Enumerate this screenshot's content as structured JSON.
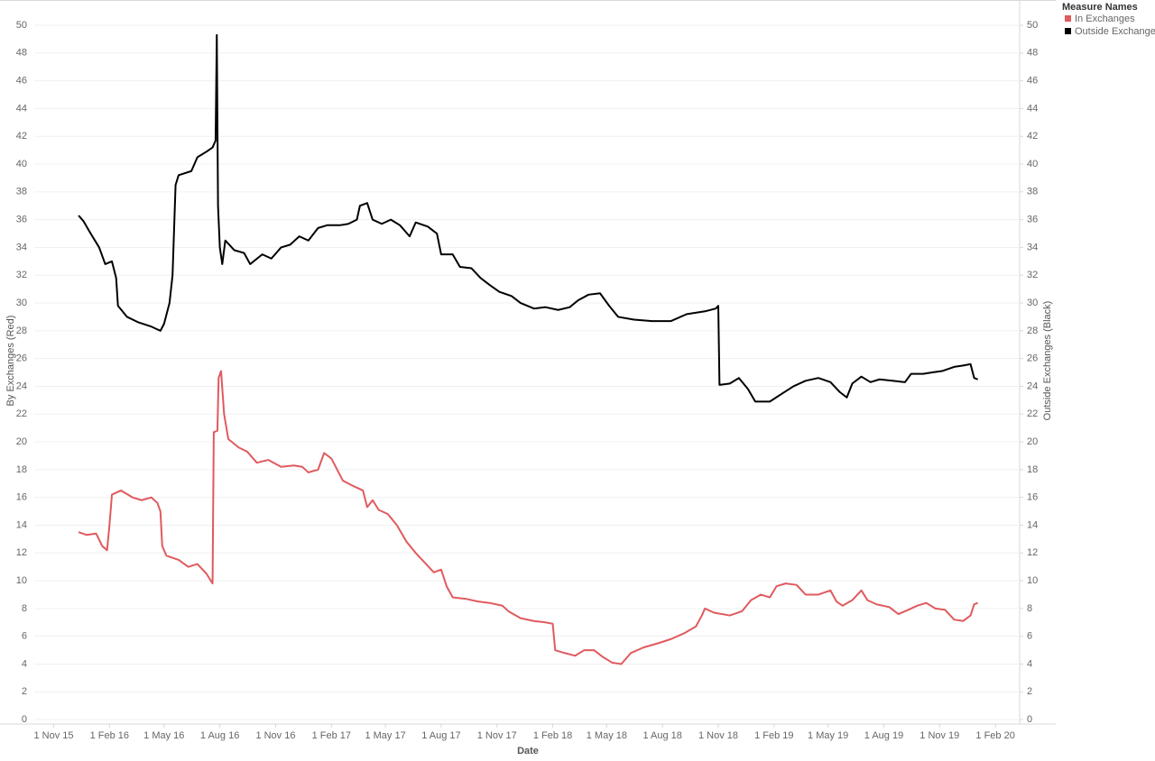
{
  "chart_data": {
    "type": "line",
    "x_label": "Date",
    "y_label": "By Exchanges (Red)",
    "y2_label": "Outside Exchanges (Black)",
    "legend_title": "Measure Names",
    "legend": "top-right",
    "grid": true,
    "xlim": [
      "2015-09-30",
      "2020-03-12"
    ],
    "xticks": [
      {
        "value": "2015-11-01",
        "label": "1 Nov 15"
      },
      {
        "value": "2016-02-01",
        "label": "1 Feb 16"
      },
      {
        "value": "2016-05-01",
        "label": "1 May 16"
      },
      {
        "value": "2016-08-01",
        "label": "1 Aug 16"
      },
      {
        "value": "2016-11-01",
        "label": "1 Nov 16"
      },
      {
        "value": "2017-02-01",
        "label": "1 Feb 17"
      },
      {
        "value": "2017-05-01",
        "label": "1 May 17"
      },
      {
        "value": "2017-08-01",
        "label": "1 Aug 17"
      },
      {
        "value": "2017-11-01",
        "label": "1 Nov 17"
      },
      {
        "value": "2018-02-01",
        "label": "1 Feb 18"
      },
      {
        "value": "2018-05-01",
        "label": "1 May 18"
      },
      {
        "value": "2018-08-01",
        "label": "1 Aug 18"
      },
      {
        "value": "2018-11-01",
        "label": "1 Nov 18"
      },
      {
        "value": "2019-02-01",
        "label": "1 Feb 19"
      },
      {
        "value": "2019-05-01",
        "label": "1 May 19"
      },
      {
        "value": "2019-08-01",
        "label": "1 Aug 19"
      },
      {
        "value": "2019-11-01",
        "label": "1 Nov 19"
      },
      {
        "value": "2020-02-01",
        "label": "1 Feb 20"
      }
    ],
    "ylim": [
      -0.32,
      51.82
    ],
    "yticks": [
      0,
      2,
      4,
      6,
      8,
      10,
      12,
      14,
      16,
      18,
      20,
      22,
      24,
      26,
      28,
      30,
      32,
      34,
      36,
      38,
      40,
      42,
      44,
      46,
      48,
      50
    ],
    "y2lim": [
      -0.32,
      51.82
    ],
    "y2ticks": [
      0,
      2,
      4,
      6,
      8,
      10,
      12,
      14,
      16,
      18,
      20,
      22,
      24,
      26,
      28,
      30,
      32,
      34,
      36,
      38,
      40,
      42,
      44,
      46,
      48,
      50
    ],
    "series": [
      {
        "name": "In Exchanges",
        "color": "#e05a5e",
        "x": [
          "2015-12-12",
          "2015-12-25",
          "2016-01-10",
          "2016-01-20",
          "2016-01-28",
          "2016-02-01",
          "2016-02-05",
          "2016-02-20",
          "2016-03-10",
          "2016-03-25",
          "2016-04-10",
          "2016-04-20",
          "2016-04-25",
          "2016-04-28",
          "2016-05-05",
          "2016-05-25",
          "2016-06-10",
          "2016-06-25",
          "2016-07-10",
          "2016-07-20",
          "2016-07-22",
          "2016-07-28",
          "2016-07-30",
          "2016-08-03",
          "2016-08-08",
          "2016-08-15",
          "2016-09-01",
          "2016-09-15",
          "2016-10-01",
          "2016-10-20",
          "2016-11-10",
          "2016-12-01",
          "2016-12-15",
          "2016-12-25",
          "2017-01-10",
          "2017-01-20",
          "2017-02-01",
          "2017-02-20",
          "2017-03-10",
          "2017-03-25",
          "2017-04-01",
          "2017-04-10",
          "2017-04-20",
          "2017-05-05",
          "2017-05-20",
          "2017-06-05",
          "2017-06-20",
          "2017-07-05",
          "2017-07-20",
          "2017-08-01",
          "2017-08-10",
          "2017-08-20",
          "2017-09-10",
          "2017-10-01",
          "2017-10-20",
          "2017-11-10",
          "2017-11-20",
          "2017-12-10",
          "2018-01-01",
          "2018-01-20",
          "2018-02-01",
          "2018-02-05",
          "2018-02-20",
          "2018-03-10",
          "2018-03-25",
          "2018-04-10",
          "2018-04-25",
          "2018-05-10",
          "2018-05-25",
          "2018-06-10",
          "2018-07-01",
          "2018-07-25",
          "2018-08-15",
          "2018-09-05",
          "2018-09-25",
          "2018-10-05",
          "2018-10-10",
          "2018-10-25",
          "2018-11-20",
          "2018-12-10",
          "2018-12-25",
          "2019-01-10",
          "2019-01-25",
          "2019-02-05",
          "2019-02-20",
          "2019-03-10",
          "2019-03-25",
          "2019-04-15",
          "2019-05-05",
          "2019-05-15",
          "2019-05-25",
          "2019-06-10",
          "2019-06-25",
          "2019-07-05",
          "2019-07-20",
          "2019-08-10",
          "2019-08-25",
          "2019-09-10",
          "2019-09-25",
          "2019-10-10",
          "2019-10-25",
          "2019-11-10",
          "2019-11-25",
          "2019-12-10",
          "2019-12-22",
          "2019-12-28",
          "2020-01-03"
        ],
        "values": [
          13.5,
          13.3,
          13.4,
          12.5,
          12.2,
          14.0,
          16.2,
          16.5,
          16.0,
          15.8,
          16.0,
          15.6,
          15.0,
          12.5,
          11.8,
          11.5,
          11.0,
          11.2,
          10.5,
          9.8,
          20.7,
          20.8,
          24.6,
          25.1,
          22.0,
          20.2,
          19.6,
          19.3,
          18.5,
          18.7,
          18.2,
          18.3,
          18.2,
          17.8,
          18.0,
          19.2,
          18.8,
          17.2,
          16.8,
          16.5,
          15.3,
          15.8,
          15.1,
          14.8,
          14.0,
          12.8,
          12.0,
          11.3,
          10.6,
          10.8,
          9.6,
          8.8,
          8.7,
          8.5,
          8.4,
          8.2,
          7.8,
          7.3,
          7.1,
          7.0,
          6.9,
          5.0,
          4.8,
          4.6,
          5.0,
          5.0,
          4.5,
          4.1,
          4.0,
          4.8,
          5.2,
          5.5,
          5.8,
          6.2,
          6.7,
          7.5,
          8.0,
          7.7,
          7.5,
          7.8,
          8.6,
          9.0,
          8.8,
          9.6,
          9.8,
          9.7,
          9.0,
          9.0,
          9.3,
          8.5,
          8.2,
          8.6,
          9.3,
          8.6,
          8.3,
          8.1,
          7.6,
          7.9,
          8.2,
          8.4,
          8.0,
          7.9,
          7.2,
          7.1,
          7.5,
          8.3,
          8.4
        ]
      },
      {
        "name": "Outside Exchanges",
        "color": "#000000",
        "axis": "y2",
        "x": [
          "2015-12-12",
          "2015-12-20",
          "2016-01-01",
          "2016-01-15",
          "2016-01-25",
          "2016-02-05",
          "2016-02-12",
          "2016-02-15",
          "2016-03-01",
          "2016-03-20",
          "2016-04-10",
          "2016-04-25",
          "2016-05-01",
          "2016-05-10",
          "2016-05-15",
          "2016-05-20",
          "2016-05-25",
          "2016-06-15",
          "2016-06-25",
          "2016-07-10",
          "2016-07-20",
          "2016-07-25",
          "2016-07-27",
          "2016-07-29",
          "2016-08-01",
          "2016-08-05",
          "2016-08-10",
          "2016-08-25",
          "2016-09-10",
          "2016-09-20",
          "2016-10-10",
          "2016-10-25",
          "2016-11-10",
          "2016-11-25",
          "2016-12-10",
          "2016-12-25",
          "2017-01-10",
          "2017-01-25",
          "2017-02-15",
          "2017-03-01",
          "2017-03-15",
          "2017-03-20",
          "2017-04-01",
          "2017-04-10",
          "2017-04-25",
          "2017-05-10",
          "2017-05-25",
          "2017-06-10",
          "2017-06-20",
          "2017-07-10",
          "2017-07-25",
          "2017-08-01",
          "2017-08-20",
          "2017-09-01",
          "2017-09-20",
          "2017-10-05",
          "2017-10-20",
          "2017-11-05",
          "2017-11-25",
          "2017-12-10",
          "2018-01-01",
          "2018-01-20",
          "2018-02-10",
          "2018-03-01",
          "2018-03-15",
          "2018-04-01",
          "2018-04-20",
          "2018-05-05",
          "2018-05-20",
          "2018-06-15",
          "2018-07-15",
          "2018-08-15",
          "2018-09-10",
          "2018-10-10",
          "2018-10-28",
          "2018-11-01",
          "2018-11-03",
          "2018-11-20",
          "2018-12-05",
          "2018-12-20",
          "2019-01-01",
          "2019-01-25",
          "2019-02-15",
          "2019-03-05",
          "2019-03-25",
          "2019-04-15",
          "2019-05-05",
          "2019-05-20",
          "2019-06-01",
          "2019-06-10",
          "2019-06-25",
          "2019-07-10",
          "2019-07-25",
          "2019-08-15",
          "2019-09-05",
          "2019-09-15",
          "2019-10-05",
          "2019-10-20",
          "2019-11-05",
          "2019-11-25",
          "2019-12-10",
          "2019-12-22",
          "2019-12-28",
          "2020-01-03"
        ],
        "values": [
          36.3,
          35.9,
          35.0,
          34.0,
          32.8,
          33.0,
          31.8,
          29.8,
          29.0,
          28.6,
          28.3,
          28.0,
          28.5,
          30.0,
          32.0,
          38.5,
          39.2,
          39.5,
          40.5,
          40.9,
          41.2,
          41.7,
          49.3,
          37.0,
          34.0,
          32.8,
          34.5,
          33.8,
          33.6,
          32.8,
          33.5,
          33.2,
          34.0,
          34.2,
          34.8,
          34.5,
          35.4,
          35.6,
          35.6,
          35.7,
          36.0,
          37.0,
          37.2,
          36.0,
          35.7,
          36.0,
          35.6,
          34.8,
          35.8,
          35.5,
          35.0,
          33.5,
          33.5,
          32.6,
          32.5,
          31.8,
          31.3,
          30.8,
          30.5,
          30.0,
          29.6,
          29.7,
          29.5,
          29.7,
          30.2,
          30.6,
          30.7,
          29.8,
          29.0,
          28.8,
          28.7,
          28.7,
          29.2,
          29.4,
          29.6,
          29.8,
          24.1,
          24.2,
          24.6,
          23.8,
          22.9,
          22.9,
          23.5,
          24.0,
          24.4,
          24.6,
          24.3,
          23.6,
          23.2,
          24.2,
          24.7,
          24.3,
          24.5,
          24.4,
          24.3,
          24.9,
          24.9,
          25.0,
          25.1,
          25.4,
          25.5,
          25.6,
          24.6,
          24.5
        ]
      }
    ]
  }
}
